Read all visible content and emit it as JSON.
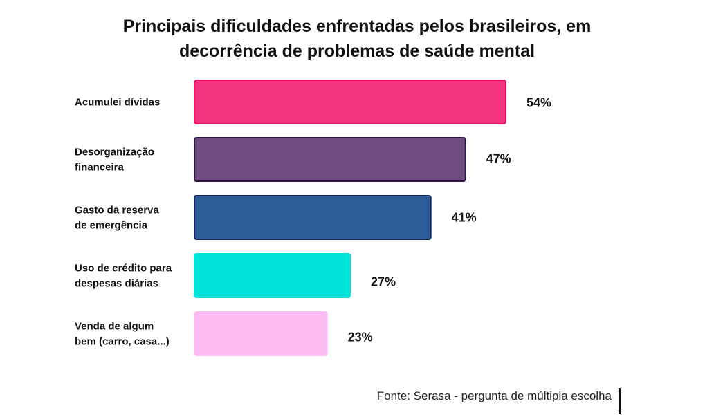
{
  "chart_data": {
    "type": "bar",
    "orientation": "horizontal",
    "title": "Principais dificuldades enfrentadas pelos brasileiros, em decorrência de problemas de saúde mental",
    "title_lines": [
      "Principais dificuldades enfrentadas pelos brasileiros, em",
      "decorrência de problemas de saúde mental"
    ],
    "categories": [
      "Acumulei dívidas",
      "Desorganização financeira",
      "Gasto da reserva de emergência",
      "Uso de crédito para despesas diárias",
      "Venda de algum bem (carro, casa...)"
    ],
    "category_lines": [
      [
        "Acumulei dívidas"
      ],
      [
        "Desorganização",
        "financeira"
      ],
      [
        "Gasto da reserva",
        "de emergência"
      ],
      [
        "Uso de crédito para",
        "despesas diárias"
      ],
      [
        "Venda de algum",
        "bem (carro, casa...)"
      ]
    ],
    "values": [
      54,
      47,
      41,
      27,
      23
    ],
    "value_labels": [
      "54%",
      "47%",
      "41%",
      "27%",
      "23%"
    ],
    "unit": "%",
    "colors": [
      "#f4347f",
      "#714b84",
      "#2e5c97",
      "#00e5db",
      "#fdbcf2"
    ],
    "border_colors": [
      "#e01265",
      "#2e1648",
      "#10285e",
      "#00e5db",
      "#fdbcf2"
    ],
    "xlim": [
      0,
      54
    ],
    "grid": false,
    "legend": "none",
    "xlabel": "",
    "ylabel": ""
  },
  "source": "Fonte: Serasa - pergunta de múltipla escolha"
}
